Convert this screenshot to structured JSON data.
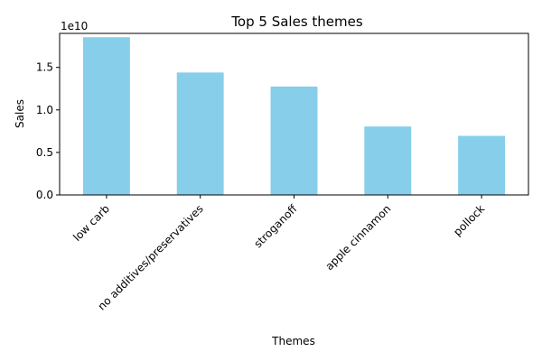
{
  "chart_data": {
    "type": "bar",
    "title": "Top 5 Sales themes",
    "xlabel": "Themes",
    "ylabel": "Sales",
    "y_offset_label": "1e10",
    "categories": [
      "low carb",
      "no additives/preservatives",
      "stroganoff",
      "apple cinnamon",
      "pollock"
    ],
    "values": [
      18550000000,
      14400000000,
      12750000000,
      8050000000,
      6950000000
    ],
    "ylim": [
      0,
      19000000000
    ],
    "yticks": [
      0,
      5000000000,
      10000000000,
      15000000000
    ],
    "ytick_labels": [
      "0.0",
      "0.5",
      "1.0",
      "1.5"
    ],
    "bar_color": "#87ceeb",
    "grid": false
  }
}
